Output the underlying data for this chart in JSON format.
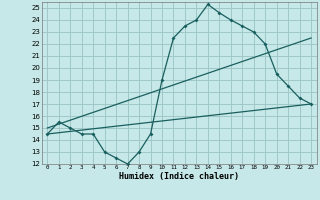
{
  "xlabel": "Humidex (Indice chaleur)",
  "bg_color": "#c6e8e8",
  "grid_color": "#a0c8c8",
  "line_color": "#1a5f5f",
  "xlim": [
    -0.5,
    23.5
  ],
  "ylim": [
    12,
    25.5
  ],
  "xticks": [
    0,
    1,
    2,
    3,
    4,
    5,
    6,
    7,
    8,
    9,
    10,
    11,
    12,
    13,
    14,
    15,
    16,
    17,
    18,
    19,
    20,
    21,
    22,
    23
  ],
  "yticks": [
    12,
    13,
    14,
    15,
    16,
    17,
    18,
    19,
    20,
    21,
    22,
    23,
    24,
    25
  ],
  "line1_x": [
    0,
    1,
    2,
    3,
    4,
    5,
    6,
    7,
    8,
    9,
    10,
    11,
    12,
    13,
    14,
    15,
    16,
    17,
    18,
    19,
    20,
    21,
    22,
    23
  ],
  "line1_y": [
    14.5,
    15.5,
    15.0,
    14.5,
    14.5,
    13.0,
    12.5,
    12.0,
    13.0,
    14.5,
    19.0,
    22.5,
    23.5,
    24.0,
    25.3,
    24.6,
    24.0,
    23.5,
    23.0,
    22.0,
    19.5,
    18.5,
    17.5,
    17.0
  ],
  "line2_x": [
    0,
    23
  ],
  "line2_y": [
    14.5,
    17.0
  ],
  "line3_x": [
    0,
    23
  ],
  "line3_y": [
    15.0,
    22.5
  ]
}
